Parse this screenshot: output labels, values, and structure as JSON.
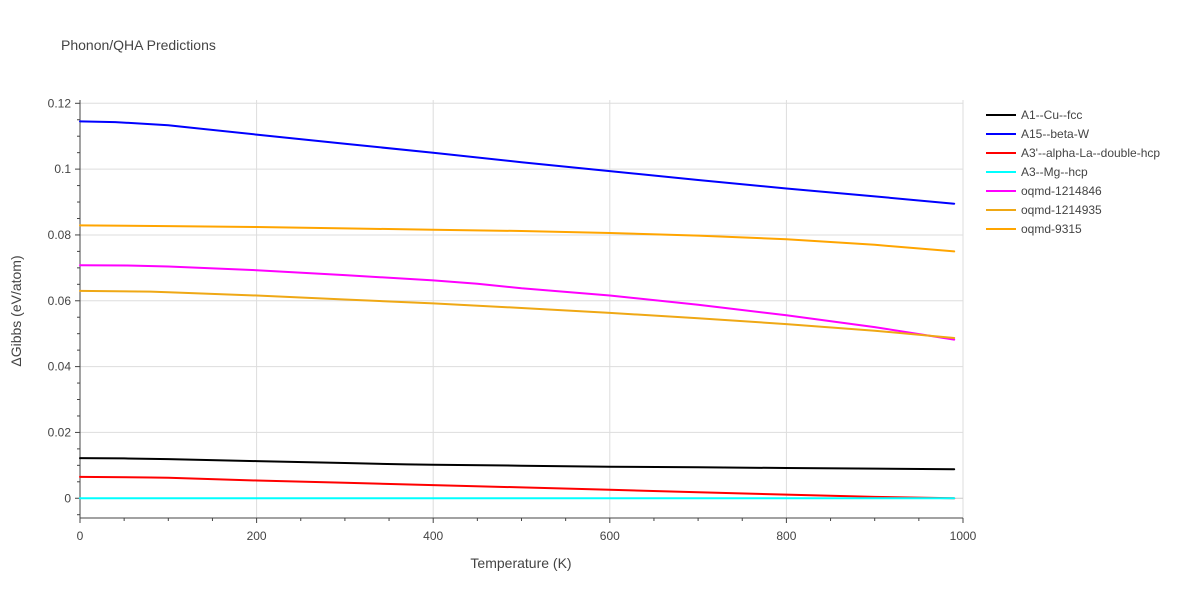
{
  "chart_data": {
    "type": "line",
    "title": "Phonon/QHA Predictions",
    "xlabel": "Temperature (K)",
    "ylabel": "ΔGibbs (eV/atom)",
    "xlim": [
      0,
      1000
    ],
    "ylim": [
      -0.006,
      0.121
    ],
    "xticks": [
      0,
      200,
      400,
      600,
      800,
      1000
    ],
    "xtick_labels": [
      "0",
      "200",
      "400",
      "600",
      "800",
      "1000"
    ],
    "yticks": [
      0,
      0.02,
      0.04,
      0.06,
      0.08,
      0.1,
      0.12
    ],
    "ytick_labels": [
      "0",
      "0.02",
      "0.04",
      "0.06",
      "0.08",
      "0.1",
      "0.12"
    ],
    "grid": true,
    "legend_position": "right",
    "series": [
      {
        "name": "A1--Cu--fcc",
        "color": "#000000",
        "x": [
          0,
          50,
          100,
          200,
          300,
          370,
          400,
          500,
          600,
          700,
          800,
          900,
          990
        ],
        "y": [
          0.0122,
          0.0121,
          0.0119,
          0.0113,
          0.0107,
          0.0103,
          0.0102,
          0.0099,
          0.0096,
          0.0094,
          0.0092,
          0.009,
          0.0088
        ]
      },
      {
        "name": "A15--beta-W",
        "color": "#0000ff",
        "x": [
          0,
          40,
          100,
          200,
          300,
          400,
          500,
          600,
          700,
          800,
          900,
          990
        ],
        "y": [
          0.1145,
          0.1143,
          0.1133,
          0.1105,
          0.1077,
          0.105,
          0.1021,
          0.0994,
          0.0967,
          0.0941,
          0.0917,
          0.0895
        ]
      },
      {
        "name": "A3'--alpha-La--double-hcp",
        "color": "#ff0000",
        "x": [
          0,
          80,
          100,
          200,
          300,
          400,
          500,
          600,
          700,
          800,
          900,
          990
        ],
        "y": [
          0.0065,
          0.0063,
          0.0062,
          0.0054,
          0.0047,
          0.004,
          0.0033,
          0.0026,
          0.0018,
          0.0011,
          0.0004,
          0.0
        ]
      },
      {
        "name": "A3--Mg--hcp",
        "color": "#00ffff",
        "x": [
          0,
          200,
          400,
          600,
          800,
          990
        ],
        "y": [
          0.0,
          0.0,
          0.0,
          0.0,
          0.0,
          0.0
        ]
      },
      {
        "name": "oqmd-1214846",
        "color": "#ff00ff",
        "x": [
          0,
          60,
          100,
          200,
          300,
          400,
          450,
          500,
          600,
          700,
          800,
          900,
          990
        ],
        "y": [
          0.0708,
          0.0707,
          0.0704,
          0.0693,
          0.0678,
          0.0662,
          0.0652,
          0.0638,
          0.0616,
          0.0588,
          0.0556,
          0.052,
          0.0482
        ]
      },
      {
        "name": "oqmd-1214935",
        "color": "#efa815",
        "x": [
          0,
          80,
          100,
          200,
          300,
          400,
          500,
          600,
          700,
          800,
          900,
          990
        ],
        "y": [
          0.063,
          0.0628,
          0.0626,
          0.0616,
          0.0604,
          0.0592,
          0.0578,
          0.0563,
          0.0547,
          0.0529,
          0.0509,
          0.0487
        ]
      },
      {
        "name": "oqmd-9315",
        "color": "#ffa500",
        "x": [
          0,
          100,
          200,
          300,
          400,
          500,
          600,
          700,
          800,
          900,
          990
        ],
        "y": [
          0.0829,
          0.0827,
          0.0824,
          0.082,
          0.0816,
          0.0812,
          0.0806,
          0.0798,
          0.0787,
          0.077,
          0.075
        ]
      }
    ]
  }
}
